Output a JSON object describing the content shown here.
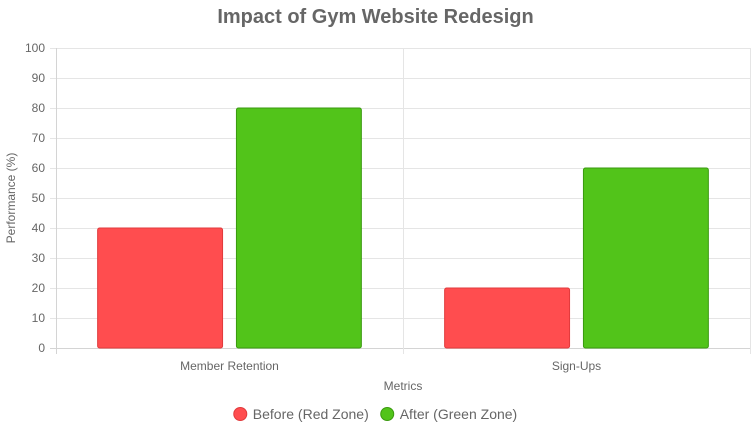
{
  "chart_data": {
    "type": "bar",
    "title": "Impact of Gym Website Redesign",
    "xlabel": "Metrics",
    "ylabel": "Performance (%)",
    "categories": [
      "Member Retention",
      "Sign-Ups"
    ],
    "series": [
      {
        "name": "Before (Red Zone)",
        "values": [
          40,
          20
        ],
        "color": "#ff4d4f",
        "border": "#e03a3c"
      },
      {
        "name": "After (Green Zone)",
        "values": [
          80,
          60
        ],
        "color": "#52c41a",
        "border": "#3a9a0f"
      }
    ],
    "ylim": [
      0,
      100
    ],
    "yticks": [
      0,
      10,
      20,
      30,
      40,
      50,
      60,
      70,
      80,
      90,
      100
    ],
    "grid": true,
    "legend_position": "bottom"
  }
}
